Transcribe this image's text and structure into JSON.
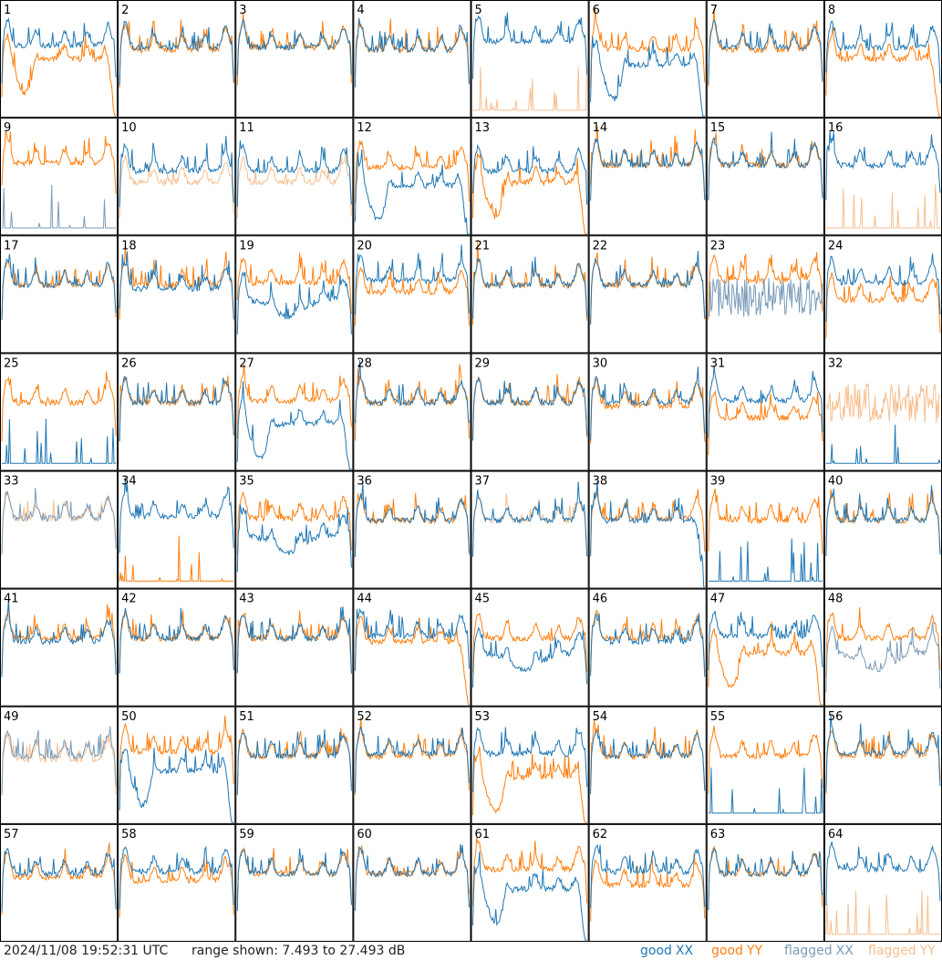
{
  "chart_data": {
    "type": "line",
    "panel_count": 64,
    "grid": "8x8",
    "timestamp": "2024/11/08 19:52:31 UTC",
    "range_label": "range shown: 7.493 to 27.493 dB",
    "y_range_db": [
      7.493,
      27.493
    ],
    "legend": [
      {
        "word": "good",
        "pol": "XX",
        "color": "#1f77b4"
      },
      {
        "word": "good",
        "pol": "YY",
        "color": "#ff7f0e"
      },
      {
        "word": "flagged",
        "pol": "XX",
        "color": "#7a9bb8"
      },
      {
        "word": "flagged",
        "pol": "YY",
        "color": "#f7be8f"
      }
    ],
    "colors": {
      "good_xx": "#1f77b4",
      "good_yy": "#ff7f0e",
      "flagged_xx": "#7a9bb8",
      "flagged_yy": "#f7be8f"
    },
    "panels": [
      {
        "label": "1",
        "xx": {
          "shape": "normal",
          "level": 0.62
        },
        "yy": {
          "shape": "dip_rolloff",
          "level": 0.5
        }
      },
      {
        "label": "2",
        "xx": {
          "shape": "normal",
          "level": 0.6
        },
        "yy": {
          "shape": "normal",
          "level": 0.58
        }
      },
      {
        "label": "3",
        "xx": {
          "shape": "normal",
          "level": 0.6
        },
        "yy": {
          "shape": "normal",
          "level": 0.6
        }
      },
      {
        "label": "4",
        "xx": {
          "shape": "normal",
          "level": 0.58
        },
        "yy": {
          "shape": "normal",
          "level": 0.58
        }
      },
      {
        "label": "5",
        "xx": {
          "shape": "normal",
          "level": 0.65
        },
        "yy": {
          "shape": "spikes",
          "level": 0.05,
          "flagged": true
        }
      },
      {
        "label": "6",
        "xx": {
          "shape": "dip_rolloff",
          "level": 0.45
        },
        "yy": {
          "shape": "normal",
          "level": 0.58
        }
      },
      {
        "label": "7",
        "xx": {
          "shape": "normal",
          "level": 0.6
        },
        "yy": {
          "shape": "normal",
          "level": 0.58
        }
      },
      {
        "label": "8",
        "xx": {
          "shape": "normal",
          "level": 0.6
        },
        "yy": {
          "shape": "rolloff",
          "level": 0.5
        }
      },
      {
        "label": "9",
        "xx": {
          "shape": "spikes",
          "level": 0.05,
          "flagged": true
        },
        "yy": {
          "shape": "normal",
          "level": 0.62
        }
      },
      {
        "label": "10",
        "xx": {
          "shape": "normal",
          "level": 0.55
        },
        "yy": {
          "shape": "normal",
          "level": 0.45,
          "flagged": true
        }
      },
      {
        "label": "11",
        "xx": {
          "shape": "normal",
          "level": 0.55
        },
        "yy": {
          "shape": "normal",
          "level": 0.45,
          "flagged": true
        }
      },
      {
        "label": "12",
        "xx": {
          "shape": "dip_rolloff",
          "level": 0.42
        },
        "yy": {
          "shape": "normal",
          "level": 0.58
        }
      },
      {
        "label": "13",
        "xx": {
          "shape": "normal",
          "level": 0.55
        },
        "yy": {
          "shape": "dip_rolloff",
          "level": 0.45
        }
      },
      {
        "label": "14",
        "xx": {
          "shape": "normal",
          "level": 0.6
        },
        "yy": {
          "shape": "normal",
          "level": 0.6
        }
      },
      {
        "label": "15",
        "xx": {
          "shape": "normal",
          "level": 0.6
        },
        "yy": {
          "shape": "normal",
          "level": 0.6
        }
      },
      {
        "label": "16",
        "xx": {
          "shape": "normal",
          "level": 0.6
        },
        "yy": {
          "shape": "spikes",
          "level": 0.05,
          "flagged": true
        }
      },
      {
        "label": "17",
        "xx": {
          "shape": "normal",
          "level": 0.58
        },
        "yy": {
          "shape": "normal",
          "level": 0.58
        }
      },
      {
        "label": "18",
        "xx": {
          "shape": "normal",
          "level": 0.55
        },
        "yy": {
          "shape": "normal",
          "level": 0.58
        }
      },
      {
        "label": "19",
        "xx": {
          "shape": "dip",
          "level": 0.45
        },
        "yy": {
          "shape": "normal",
          "level": 0.6
        }
      },
      {
        "label": "20",
        "xx": {
          "shape": "normal",
          "level": 0.62
        },
        "yy": {
          "shape": "normal",
          "level": 0.52
        }
      },
      {
        "label": "21",
        "xx": {
          "shape": "normal",
          "level": 0.58
        },
        "yy": {
          "shape": "normal",
          "level": 0.58
        }
      },
      {
        "label": "22",
        "xx": {
          "shape": "normal",
          "level": 0.58
        },
        "yy": {
          "shape": "normal",
          "level": 0.58
        }
      },
      {
        "label": "23",
        "xx": {
          "shape": "noisy",
          "level": 0.3,
          "flagged": true
        },
        "yy": {
          "shape": "normal",
          "level": 0.62
        }
      },
      {
        "label": "24",
        "xx": {
          "shape": "normal",
          "level": 0.6
        },
        "yy": {
          "shape": "normal",
          "level": 0.45
        }
      },
      {
        "label": "25",
        "xx": {
          "shape": "spikes",
          "level": 0.05
        },
        "yy": {
          "shape": "normal",
          "level": 0.58
        }
      },
      {
        "label": "26",
        "xx": {
          "shape": "normal",
          "level": 0.58
        },
        "yy": {
          "shape": "normal",
          "level": 0.58
        }
      },
      {
        "label": "27",
        "xx": {
          "shape": "dip_rolloff",
          "level": 0.4
        },
        "yy": {
          "shape": "normal",
          "level": 0.6
        }
      },
      {
        "label": "28",
        "xx": {
          "shape": "normal",
          "level": 0.58
        },
        "yy": {
          "shape": "normal",
          "level": 0.58
        }
      },
      {
        "label": "29",
        "xx": {
          "shape": "normal",
          "level": 0.58
        },
        "yy": {
          "shape": "normal",
          "level": 0.58
        }
      },
      {
        "label": "30",
        "xx": {
          "shape": "normal",
          "level": 0.58
        },
        "yy": {
          "shape": "normal",
          "level": 0.55
        }
      },
      {
        "label": "31",
        "xx": {
          "shape": "normal",
          "level": 0.6
        },
        "yy": {
          "shape": "normal",
          "level": 0.45
        }
      },
      {
        "label": "32",
        "xx": {
          "shape": "spikes",
          "level": 0.05
        },
        "yy": {
          "shape": "noisy",
          "level": 0.4,
          "flagged": true
        }
      },
      {
        "label": "33",
        "xx": {
          "shape": "normal",
          "level": 0.6,
          "flagged": true
        },
        "yy": {
          "shape": "normal",
          "level": 0.6,
          "flagged": true
        }
      },
      {
        "label": "34",
        "xx": {
          "shape": "normal",
          "level": 0.62
        },
        "yy": {
          "shape": "spikes",
          "level": 0.05
        }
      },
      {
        "label": "35",
        "xx": {
          "shape": "dip",
          "level": 0.45
        },
        "yy": {
          "shape": "normal",
          "level": 0.6
        }
      },
      {
        "label": "36",
        "xx": {
          "shape": "normal",
          "level": 0.58
        },
        "yy": {
          "shape": "normal",
          "level": 0.58
        }
      },
      {
        "label": "37",
        "xx": {
          "shape": "normal",
          "level": 0.58
        },
        "yy": {
          "shape": "normal",
          "level": 0.58,
          "flagged": true
        }
      },
      {
        "label": "38",
        "xx": {
          "shape": "rolloff",
          "level": 0.58
        },
        "yy": {
          "shape": "normal",
          "level": 0.6
        }
      },
      {
        "label": "39",
        "xx": {
          "shape": "spikes",
          "level": 0.05
        },
        "yy": {
          "shape": "normal",
          "level": 0.58
        }
      },
      {
        "label": "40",
        "xx": {
          "shape": "normal",
          "level": 0.58
        },
        "yy": {
          "shape": "normal",
          "level": 0.58
        }
      },
      {
        "label": "41",
        "xx": {
          "shape": "normal",
          "level": 0.55
        },
        "yy": {
          "shape": "normal",
          "level": 0.58
        }
      },
      {
        "label": "42",
        "xx": {
          "shape": "normal",
          "level": 0.58
        },
        "yy": {
          "shape": "normal",
          "level": 0.58
        }
      },
      {
        "label": "43",
        "xx": {
          "shape": "normal",
          "level": 0.58
        },
        "yy": {
          "shape": "normal",
          "level": 0.58
        }
      },
      {
        "label": "44",
        "xx": {
          "shape": "normal",
          "level": 0.6
        },
        "yy": {
          "shape": "rolloff",
          "level": 0.55
        }
      },
      {
        "label": "45",
        "xx": {
          "shape": "dip",
          "level": 0.45
        },
        "yy": {
          "shape": "normal",
          "level": 0.58
        }
      },
      {
        "label": "46",
        "xx": {
          "shape": "normal",
          "level": 0.55
        },
        "yy": {
          "shape": "normal",
          "level": 0.58
        }
      },
      {
        "label": "47",
        "xx": {
          "shape": "normal",
          "level": 0.6
        },
        "yy": {
          "shape": "dip_rolloff",
          "level": 0.45
        }
      },
      {
        "label": "48",
        "xx": {
          "shape": "dip",
          "level": 0.45,
          "flagged": true
        },
        "yy": {
          "shape": "normal",
          "level": 0.58
        }
      },
      {
        "label": "49",
        "xx": {
          "shape": "normal",
          "level": 0.58,
          "flagged": true
        },
        "yy": {
          "shape": "normal",
          "level": 0.55,
          "flagged": true
        }
      },
      {
        "label": "50",
        "xx": {
          "shape": "dip_rolloff",
          "level": 0.45
        },
        "yy": {
          "shape": "normal",
          "level": 0.62
        }
      },
      {
        "label": "51",
        "xx": {
          "shape": "normal",
          "level": 0.58
        },
        "yy": {
          "shape": "normal",
          "level": 0.58
        }
      },
      {
        "label": "52",
        "xx": {
          "shape": "normal",
          "level": 0.6
        },
        "yy": {
          "shape": "normal",
          "level": 0.58
        }
      },
      {
        "label": "53",
        "xx": {
          "shape": "normal",
          "level": 0.6
        },
        "yy": {
          "shape": "dip_rolloff",
          "level": 0.4
        }
      },
      {
        "label": "54",
        "xx": {
          "shape": "normal",
          "level": 0.58
        },
        "yy": {
          "shape": "normal",
          "level": 0.58
        }
      },
      {
        "label": "55",
        "xx": {
          "shape": "spikes",
          "level": 0.08
        },
        "yy": {
          "shape": "normal",
          "level": 0.58
        }
      },
      {
        "label": "56",
        "xx": {
          "shape": "normal",
          "level": 0.6
        },
        "yy": {
          "shape": "normal",
          "level": 0.58
        }
      },
      {
        "label": "57",
        "xx": {
          "shape": "normal",
          "level": 0.58
        },
        "yy": {
          "shape": "normal",
          "level": 0.55
        }
      },
      {
        "label": "58",
        "xx": {
          "shape": "normal",
          "level": 0.6
        },
        "yy": {
          "shape": "normal",
          "level": 0.52
        }
      },
      {
        "label": "59",
        "xx": {
          "shape": "normal",
          "level": 0.58
        },
        "yy": {
          "shape": "normal",
          "level": 0.58
        }
      },
      {
        "label": "60",
        "xx": {
          "shape": "normal",
          "level": 0.58
        },
        "yy": {
          "shape": "normal",
          "level": 0.58
        }
      },
      {
        "label": "61",
        "xx": {
          "shape": "dip_rolloff",
          "level": 0.45
        },
        "yy": {
          "shape": "normal",
          "level": 0.62
        }
      },
      {
        "label": "62",
        "xx": {
          "shape": "normal",
          "level": 0.6
        },
        "yy": {
          "shape": "normal",
          "level": 0.48
        }
      },
      {
        "label": "63",
        "xx": {
          "shape": "normal",
          "level": 0.58
        },
        "yy": {
          "shape": "normal",
          "level": 0.58
        }
      },
      {
        "label": "64",
        "xx": {
          "shape": "normal",
          "level": 0.62
        },
        "yy": {
          "shape": "spikes",
          "level": 0.05,
          "flagged": true
        }
      }
    ]
  }
}
